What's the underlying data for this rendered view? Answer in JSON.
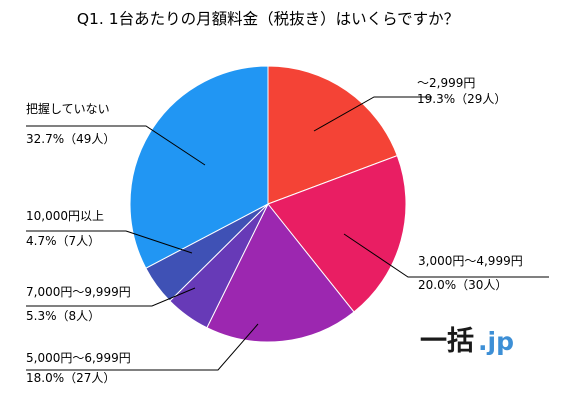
{
  "chart_data": {
    "type": "pie",
    "title": "Q1. 1台あたりの月額料金（税抜き）はいくらですか？",
    "slices": [
      {
        "name": "～2,999円",
        "percent_label": "19.3%（29人）",
        "value": 19.3,
        "count": 29,
        "color": "#f44336"
      },
      {
        "name": "3,000円～4,999円",
        "percent_label": "20.0%（30人）",
        "value": 20.0,
        "count": 30,
        "color": "#e91e63"
      },
      {
        "name": "5,000円～6,999円",
        "percent_label": "18.0%（27人）",
        "value": 18.0,
        "count": 27,
        "color": "#9c27b0"
      },
      {
        "name": "7,000円～9,999円",
        "percent_label": "5.3%（8人）",
        "value": 5.3,
        "count": 8,
        "color": "#673ab7"
      },
      {
        "name": "10,000円以上",
        "percent_label": "4.7%（7人）",
        "value": 4.7,
        "count": 7,
        "color": "#3f51b5"
      },
      {
        "name": "把握していない",
        "percent_label": "32.7%（49人）",
        "value": 32.7,
        "count": 49,
        "color": "#2196f3"
      }
    ]
  },
  "logo": {
    "main": "一括",
    "suffix": ".jp"
  }
}
